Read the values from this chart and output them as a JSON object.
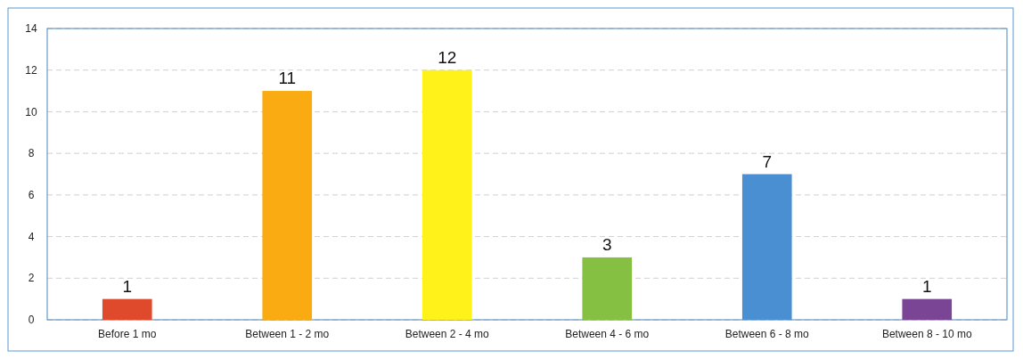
{
  "chart_data": {
    "type": "bar",
    "categories": [
      "Before 1 mo",
      "Between 1 - 2 mo",
      "Between 2 - 4 mo",
      "Between 4 - 6 mo",
      "Between 6 - 8 mo",
      "Between 8 - 10 mo"
    ],
    "values": [
      1,
      11,
      12,
      3,
      7,
      1
    ],
    "colors": [
      "#e04a2c",
      "#fbab12",
      "#fff21a",
      "#86c043",
      "#4a8fd2",
      "#7a4595"
    ],
    "ylim": [
      0,
      14
    ],
    "yticks": [
      0,
      2,
      4,
      6,
      8,
      10,
      12,
      14
    ],
    "grid": "y",
    "data_labels": true
  }
}
